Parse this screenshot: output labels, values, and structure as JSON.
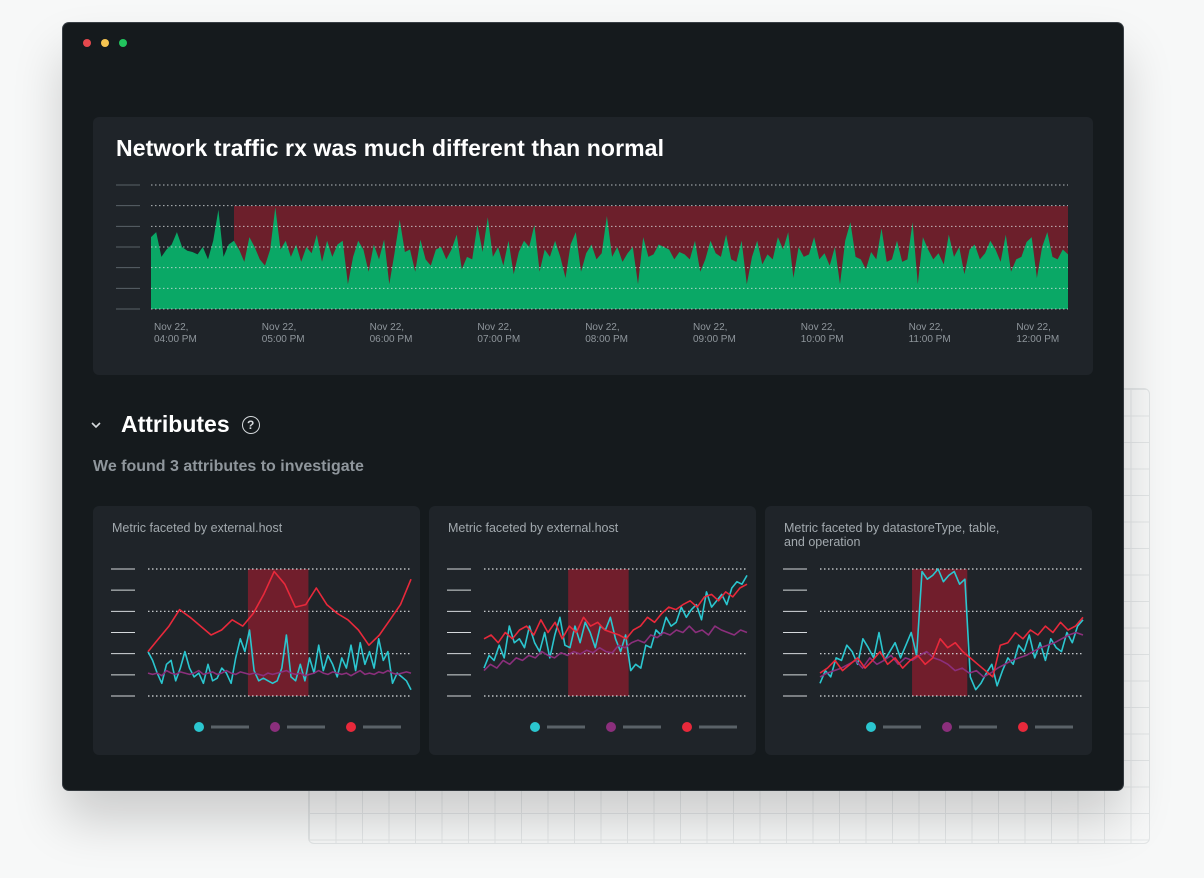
{
  "window": {
    "controls": [
      {
        "name": "close",
        "color": "#e5484d"
      },
      {
        "name": "minimize",
        "color": "#f5c451"
      },
      {
        "name": "maximize",
        "color": "#22c55e"
      }
    ]
  },
  "main_chart": {
    "title": "Network traffic rx was much different than normal",
    "x_ticks": [
      [
        "Nov 22,",
        "04:00 PM"
      ],
      [
        "Nov 22,",
        "05:00 PM"
      ],
      [
        "Nov 22,",
        "06:00 PM"
      ],
      [
        "Nov 22,",
        "07:00 PM"
      ],
      [
        "Nov 22,",
        "08:00 PM"
      ],
      [
        "Nov 22,",
        "09:00 PM"
      ],
      [
        "Nov 22,",
        "10:00 PM"
      ],
      [
        "Nov 22,",
        "11:00 PM"
      ],
      [
        "Nov 22,",
        "12:00 PM"
      ]
    ]
  },
  "attributes": {
    "title": "Attributes",
    "help_icon": "?",
    "summary": "We found 3 attributes to investigate"
  },
  "colors": {
    "area": "#0aa866",
    "anomaly": "#7a1e2c",
    "teal": "#2bc6cf",
    "purple": "#8b2f7c",
    "red": "#e8293b"
  },
  "chart_data": [
    {
      "type": "area",
      "title": "Network traffic rx was much different than normal",
      "x_range": [
        "Nov 22, 04:00 PM",
        "Nov 22, 12:00 PM"
      ],
      "anomaly_region": [
        "Nov 22, 04:45 PM",
        "Nov 22, 12:30 PM"
      ],
      "series": [
        {
          "values": [
            0.58,
            0.62,
            0.42,
            0.48,
            0.52,
            0.62,
            0.5,
            0.47,
            0.46,
            0.44,
            0.5,
            0.4,
            0.55,
            0.8,
            0.42,
            0.52,
            0.55,
            0.48,
            0.38,
            0.58,
            0.5,
            0.4,
            0.35,
            0.48,
            0.82,
            0.48,
            0.55,
            0.42,
            0.52,
            0.38,
            0.5,
            0.45,
            0.6,
            0.38,
            0.55,
            0.42,
            0.52,
            0.55,
            0.2,
            0.42,
            0.55,
            0.48,
            0.3,
            0.52,
            0.4,
            0.56,
            0.2,
            0.45,
            0.72,
            0.46,
            0.48,
            0.3,
            0.56,
            0.4,
            0.35,
            0.48,
            0.5,
            0.4,
            0.48,
            0.6,
            0.32,
            0.42,
            0.4,
            0.68,
            0.46,
            0.74,
            0.42,
            0.5,
            0.35,
            0.55,
            0.28,
            0.46,
            0.55,
            0.5,
            0.68,
            0.3,
            0.48,
            0.42,
            0.55,
            0.42,
            0.25,
            0.52,
            0.62,
            0.3,
            0.45,
            0.52,
            0.4,
            0.45,
            0.75,
            0.42,
            0.5,
            0.38,
            0.45,
            0.5,
            0.2,
            0.58,
            0.42,
            0.44,
            0.52,
            0.5,
            0.48,
            0.4,
            0.46,
            0.44,
            0.4,
            0.55,
            0.3,
            0.4,
            0.55,
            0.45,
            0.42,
            0.6,
            0.4,
            0.38,
            0.55,
            0.2,
            0.42,
            0.55,
            0.36,
            0.44,
            0.4,
            0.58,
            0.48,
            0.62,
            0.25,
            0.5,
            0.42,
            0.44,
            0.58,
            0.4,
            0.45,
            0.35,
            0.5,
            0.2,
            0.55,
            0.7,
            0.42,
            0.4,
            0.32,
            0.46,
            0.4,
            0.65,
            0.38,
            0.4,
            0.55,
            0.38,
            0.4,
            0.7,
            0.2,
            0.58,
            0.48,
            0.4,
            0.45,
            0.36,
            0.6,
            0.42,
            0.5,
            0.28,
            0.48,
            0.52,
            0.4,
            0.45,
            0.55,
            0.48,
            0.38,
            0.6,
            0.3,
            0.4,
            0.42,
            0.54,
            0.58,
            0.25,
            0.5,
            0.62,
            0.42,
            0.4,
            0.48,
            0.44
          ]
        }
      ]
    },
    {
      "type": "line",
      "title": "Metric faceted by external.host",
      "anomaly_region": [
        0.38,
        0.61
      ],
      "series": [
        {
          "color": "#2bc6cf",
          "values": [
            0.35,
            0.28,
            0.18,
            0.1,
            0.25,
            0.28,
            0.12,
            0.22,
            0.35,
            0.22,
            0.15,
            0.18,
            0.1,
            0.25,
            0.12,
            0.14,
            0.22,
            0.18,
            0.1,
            0.3,
            0.45,
            0.35,
            0.52,
            0.2,
            0.12,
            0.14,
            0.12,
            0.1,
            0.12,
            0.22,
            0.48,
            0.15,
            0.12,
            0.25,
            0.12,
            0.3,
            0.18,
            0.4,
            0.2,
            0.32,
            0.25,
            0.15,
            0.3,
            0.22,
            0.4,
            0.2,
            0.42,
            0.25,
            0.35,
            0.22,
            0.45,
            0.28,
            0.35,
            0.1,
            0.18,
            0.15,
            0.12,
            0.05
          ]
        },
        {
          "color": "#8b2f7c",
          "values": [
            0.18,
            0.17,
            0.18,
            0.16,
            0.2,
            0.18,
            0.17,
            0.19,
            0.18,
            0.17,
            0.18,
            0.2,
            0.17,
            0.18,
            0.19,
            0.17,
            0.18,
            0.2,
            0.18,
            0.17,
            0.19,
            0.18,
            0.17,
            0.18,
            0.17,
            0.16,
            0.18,
            0.17,
            0.18,
            0.19,
            0.2,
            0.18,
            0.17,
            0.18,
            0.16,
            0.17,
            0.18,
            0.2,
            0.18,
            0.17,
            0.19,
            0.18,
            0.17,
            0.18,
            0.16,
            0.18,
            0.2,
            0.17,
            0.18,
            0.17,
            0.19,
            0.18,
            0.2,
            0.18,
            0.17,
            0.18,
            0.19,
            0.18
          ]
        },
        {
          "color": "#e8293b",
          "values": [
            0.35,
            0.45,
            0.55,
            0.68,
            0.62,
            0.55,
            0.48,
            0.52,
            0.6,
            0.55,
            0.65,
            0.8,
            0.98,
            0.88,
            0.7,
            0.72,
            0.85,
            0.72,
            0.65,
            0.6,
            0.52,
            0.4,
            0.48,
            0.6,
            0.72,
            0.92
          ]
        }
      ]
    },
    {
      "type": "line",
      "title": "Metric faceted by external.host",
      "anomaly_region": [
        0.32,
        0.55
      ],
      "series": [
        {
          "color": "#2bc6cf",
          "values": [
            0.22,
            0.32,
            0.28,
            0.4,
            0.3,
            0.55,
            0.42,
            0.45,
            0.38,
            0.55,
            0.42,
            0.35,
            0.5,
            0.3,
            0.48,
            0.62,
            0.4,
            0.38,
            0.55,
            0.42,
            0.58,
            0.5,
            0.38,
            0.55,
            0.52,
            0.62,
            0.45,
            0.35,
            0.48,
            0.2,
            0.25,
            0.22,
            0.4,
            0.38,
            0.52,
            0.48,
            0.62,
            0.55,
            0.58,
            0.7,
            0.62,
            0.68,
            0.72,
            0.6,
            0.82,
            0.7,
            0.75,
            0.8,
            0.72,
            0.85,
            0.9,
            0.88,
            0.95
          ]
        },
        {
          "color": "#8b2f7c",
          "values": [
            0.2,
            0.25,
            0.22,
            0.28,
            0.25,
            0.3,
            0.28,
            0.32,
            0.3,
            0.35,
            0.32,
            0.3,
            0.34,
            0.32,
            0.35,
            0.33,
            0.36,
            0.34,
            0.38,
            0.35,
            0.34,
            0.4,
            0.38,
            0.42,
            0.44,
            0.42,
            0.48,
            0.46,
            0.5,
            0.48,
            0.52,
            0.5,
            0.55,
            0.5,
            0.52,
            0.48,
            0.55,
            0.52,
            0.5,
            0.48,
            0.52,
            0.5
          ]
        },
        {
          "color": "#e8293b",
          "values": [
            0.45,
            0.48,
            0.42,
            0.5,
            0.45,
            0.52,
            0.55,
            0.48,
            0.6,
            0.5,
            0.58,
            0.45,
            0.55,
            0.5,
            0.62,
            0.55,
            0.58,
            0.52,
            0.5,
            0.48,
            0.45,
            0.52,
            0.55,
            0.62,
            0.58,
            0.65,
            0.7,
            0.68,
            0.72,
            0.75,
            0.7,
            0.78,
            0.8,
            0.75,
            0.82,
            0.78,
            0.85,
            0.88
          ]
        }
      ]
    },
    {
      "type": "line",
      "title": "Metric faceted by datastoreType, table, and operation",
      "anomaly_region": [
        0.35,
        0.56
      ],
      "series": [
        {
          "color": "#2bc6cf",
          "values": [
            0.1,
            0.2,
            0.15,
            0.3,
            0.28,
            0.4,
            0.35,
            0.25,
            0.45,
            0.38,
            0.3,
            0.5,
            0.28,
            0.35,
            0.42,
            0.3,
            0.4,
            0.5,
            0.32,
            0.98,
            0.92,
            0.95,
            1.0,
            0.9,
            0.95,
            0.98,
            0.88,
            0.92,
            0.15,
            0.05,
            0.1,
            0.18,
            0.25,
            0.08,
            0.2,
            0.3,
            0.25,
            0.4,
            0.35,
            0.48,
            0.3,
            0.42,
            0.28,
            0.45,
            0.38,
            0.35,
            0.5,
            0.42,
            0.55,
            0.6
          ]
        },
        {
          "color": "#8b2f7c",
          "values": [
            0.15,
            0.18,
            0.2,
            0.22,
            0.25,
            0.28,
            0.22,
            0.3,
            0.25,
            0.28,
            0.32,
            0.25,
            0.3,
            0.28,
            0.32,
            0.35,
            0.3,
            0.28,
            0.25,
            0.2,
            0.22,
            0.18,
            0.2,
            0.15,
            0.18,
            0.22,
            0.25,
            0.28,
            0.3,
            0.32,
            0.35,
            0.38,
            0.4,
            0.42,
            0.45,
            0.48,
            0.5,
            0.48
          ]
        },
        {
          "color": "#e8293b",
          "values": [
            0.18,
            0.22,
            0.28,
            0.2,
            0.25,
            0.3,
            0.22,
            0.28,
            0.35,
            0.25,
            0.3,
            0.22,
            0.28,
            0.32,
            0.25,
            0.3,
            0.45,
            0.38,
            0.42,
            0.35,
            0.3,
            0.25,
            0.2,
            0.15,
            0.4,
            0.42,
            0.5,
            0.45,
            0.52,
            0.48,
            0.55,
            0.5,
            0.58,
            0.52,
            0.55,
            0.62
          ]
        }
      ]
    }
  ]
}
